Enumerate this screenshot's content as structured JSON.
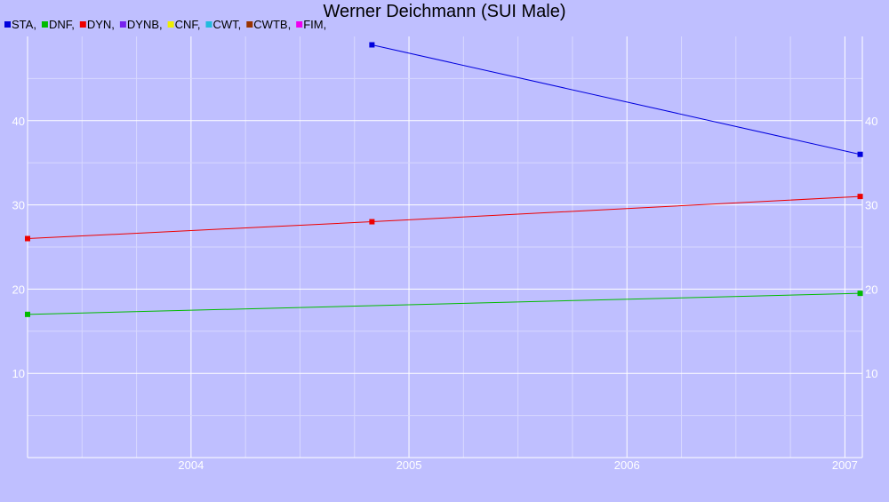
{
  "chart_data": {
    "type": "line",
    "title": "Werner Deichmann (SUI Male)",
    "xlabel": "",
    "ylabel": "",
    "legend_position": "top-left",
    "legend": [
      {
        "label": "STA,",
        "color": "#0000dd"
      },
      {
        "label": "DNF,",
        "color": "#00bb00"
      },
      {
        "label": "DYN,",
        "color": "#ee0000"
      },
      {
        "label": "DYNB,",
        "color": "#7722ee"
      },
      {
        "label": "CNF,",
        "color": "#eeee00"
      },
      {
        "label": "CWT,",
        "color": "#22bbdd"
      },
      {
        "label": "CWTB,",
        "color": "#993300"
      },
      {
        "label": "FIM,",
        "color": "#ee00ee"
      }
    ],
    "x_ticks": [
      "2004",
      "2005",
      "2006",
      "2007"
    ],
    "y_ticks": [
      10,
      20,
      30,
      40
    ],
    "xlim": [
      2003.25,
      2007.08
    ],
    "ylim": [
      0,
      50
    ],
    "grid": true,
    "series": [
      {
        "name": "STA",
        "color": "#0000dd",
        "x": [
          2004.83,
          2007.07
        ],
        "y": [
          49,
          36
        ]
      },
      {
        "name": "DYN",
        "color": "#ee0000",
        "x": [
          2003.25,
          2004.83,
          2007.07
        ],
        "y": [
          26,
          28,
          31
        ]
      },
      {
        "name": "DNF",
        "color": "#00bb00",
        "x": [
          2003.25,
          2007.07
        ],
        "y": [
          17,
          19.5
        ]
      }
    ]
  }
}
